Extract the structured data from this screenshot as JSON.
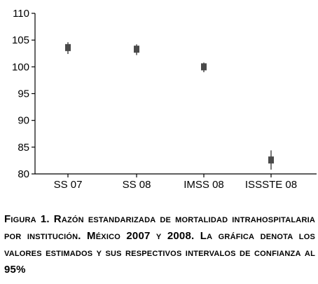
{
  "chart_data": {
    "type": "scatter",
    "subtype": "point-with-confidence-interval",
    "categories": [
      "SS 07",
      "SS 08",
      "IMSS 08",
      "ISSSTE 08"
    ],
    "values": [
      103.6,
      103.3,
      100.0,
      82.6
    ],
    "ci_low": [
      102.4,
      102.2,
      99.0,
      80.8
    ],
    "ci_high": [
      104.6,
      104.2,
      100.8,
      84.4
    ],
    "ylim": [
      80,
      110
    ],
    "yticks": [
      80,
      85,
      90,
      95,
      100,
      105,
      110
    ],
    "grid": false,
    "legend": "none",
    "marker_color": "#4a4a4a"
  },
  "caption": "Figura 1. Razón estandarizada de mortalidad intrahospitalaria por institución. México 2007 y 2008. La gráfica denota los valores estimados y sus respectivos intervalos de confianza al 95%"
}
